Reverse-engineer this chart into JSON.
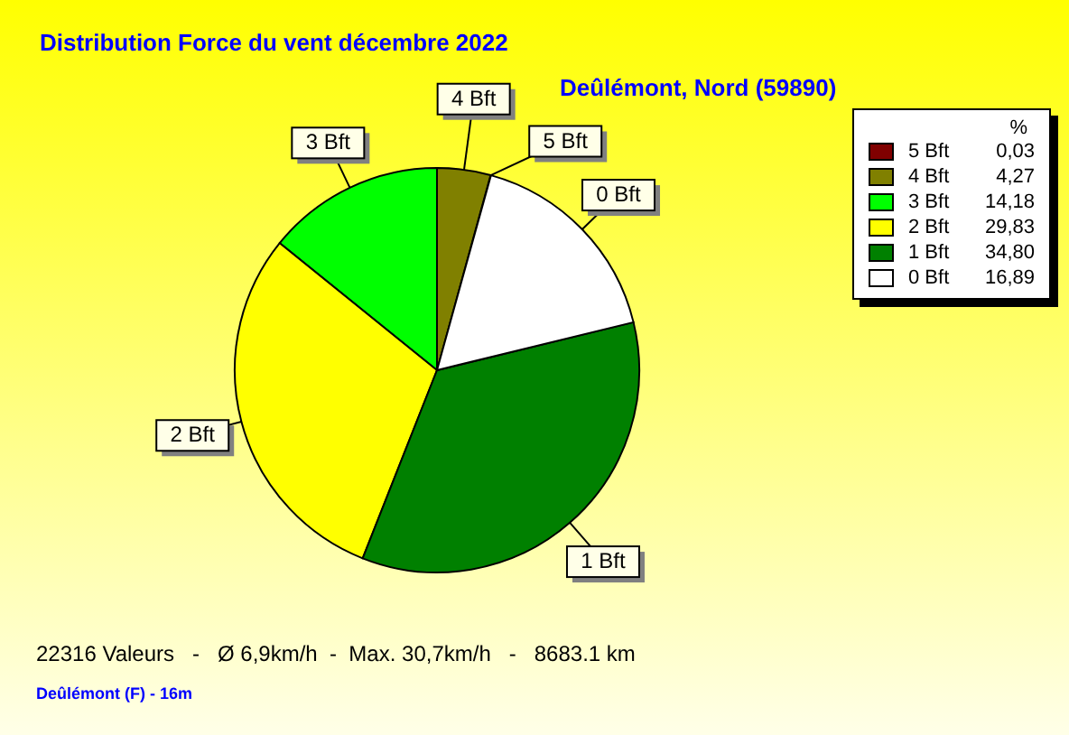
{
  "chart_data": {
    "type": "pie",
    "title": "Distribution Force du vent  décembre 2022",
    "subtitle": "Deûlémont, Nord (59890)",
    "categories": [
      "5 Bft",
      "4 Bft",
      "3 Bft",
      "2 Bft",
      "1 Bft",
      "0 Bft"
    ],
    "values": [
      0.03,
      4.27,
      14.18,
      29.83,
      34.8,
      16.89
    ],
    "value_labels": [
      "0,03",
      "4,27",
      "14,18",
      "29,83",
      "34,80",
      "16,89"
    ],
    "colors": [
      "#800000",
      "#808000",
      "#00ff00",
      "#ffff00",
      "#008000",
      "#ffffff"
    ],
    "legend_title": "%",
    "legend": "top right",
    "annotations": [
      "22316 Valeurs   -   Ø 6,9km/h  -  Max. 30,7km/h   -   8683.1 km",
      "Deûlémont (F) - 16m"
    ]
  }
}
